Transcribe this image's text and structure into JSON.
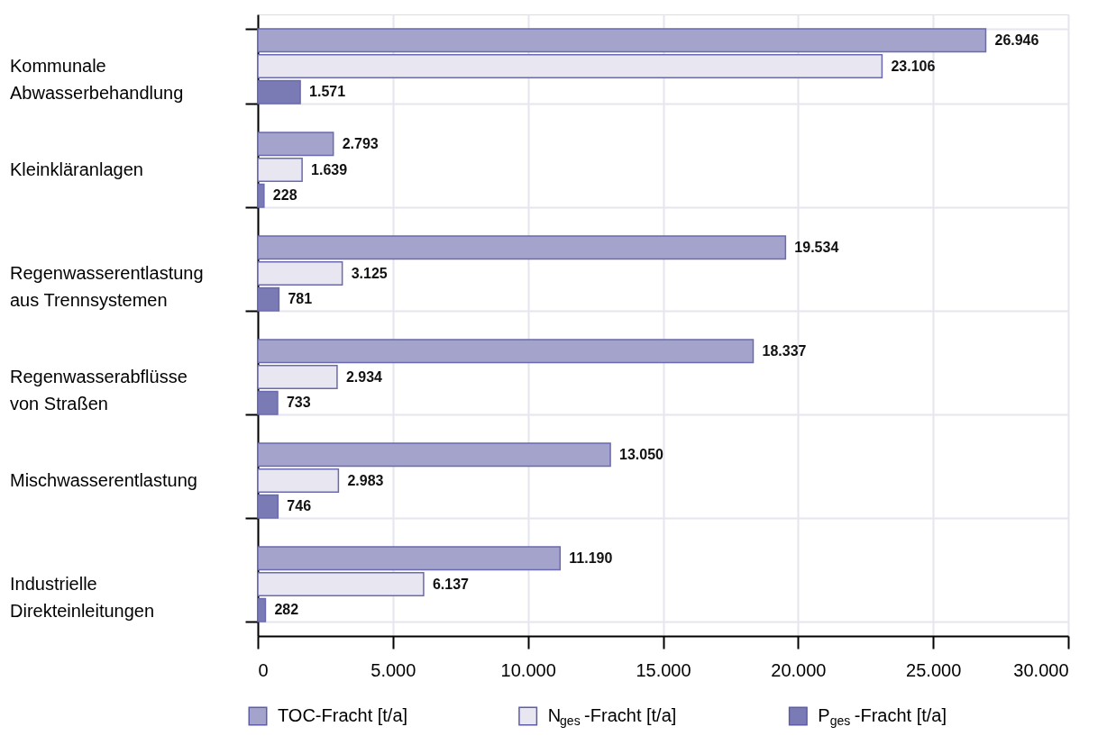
{
  "chart_data": {
    "type": "bar",
    "orientation": "horizontal",
    "categories": [
      "Kommunale\nAbwasserbehandlung",
      "Kleinkläranlagen",
      "Regenwasserentlastung\naus Trennsystemen",
      "Regenwasserabflüsse\nvon Straßen",
      "Mischwasserentlastung",
      "Industrielle\nDirekteinleitungen"
    ],
    "series": [
      {
        "name": "TOC-Fracht [t/a]",
        "color": "#a3a3cc",
        "values": [
          26946,
          2793,
          19534,
          18337,
          13050,
          11190
        ],
        "value_labels": [
          "26.946",
          "2.793",
          "19.534",
          "18.337",
          "13.050",
          "11.190"
        ]
      },
      {
        "name": "N$_{ges}$-Fracht [t/a]",
        "color": "#e8e6f0",
        "values": [
          23106,
          1639,
          3125,
          2934,
          2983,
          6137
        ],
        "value_labels": [
          "23.106",
          "1.639",
          "3.125",
          "2.934",
          "2.983",
          "6.137"
        ]
      },
      {
        "name": "P$_{ges}$-Fracht [t/a]",
        "color": "#7a7ab5",
        "values": [
          1571,
          228,
          781,
          733,
          746,
          282
        ],
        "value_labels": [
          "1.571",
          "228",
          "781",
          "733",
          "746",
          "282"
        ]
      }
    ],
    "xlim": [
      0,
      30000
    ],
    "xticks": [
      0,
      {
        "value": 5000,
        "label": "5.000"
      },
      {
        "value": 10000,
        "label": "10.000"
      },
      {
        "value": 15000,
        "label": "15.000"
      },
      {
        "value": 20000,
        "label": "20.000"
      },
      {
        "value": 25000,
        "label": "25.000"
      },
      {
        "value": 30000,
        "label": "30.000"
      }
    ],
    "grid": true,
    "legend": "bottom"
  }
}
